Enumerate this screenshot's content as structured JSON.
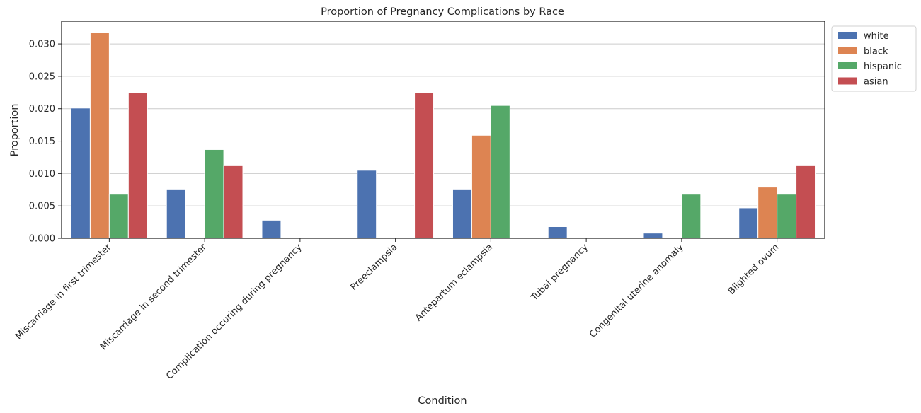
{
  "chart_data": {
    "type": "bar",
    "title": "Proportion of Pregnancy Complications by Race",
    "xlabel": "Condition",
    "ylabel": "Proportion",
    "ylim": [
      0,
      0.0335
    ],
    "yticks": [
      0.0,
      0.005,
      0.01,
      0.015,
      0.02,
      0.025,
      0.03
    ],
    "ytick_labels": [
      "0.000",
      "0.005",
      "0.010",
      "0.015",
      "0.020",
      "0.025",
      "0.030"
    ],
    "grid": "horizontal",
    "legend_position": "outside-top-right",
    "categories": [
      "Miscarriage in first trimester",
      "Miscarriage in second trimester",
      "Complication occuring during pregnancy",
      "Preeclampsia",
      "Antepartum eclampsia",
      "Tubal pregnancy",
      "Congenital uterine anomaly",
      "Blighted ovum"
    ],
    "series": [
      {
        "name": "white",
        "color": "#4c72b0",
        "values": [
          0.0201,
          0.0076,
          0.0028,
          0.0105,
          0.0076,
          0.0018,
          0.0008,
          0.0047
        ]
      },
      {
        "name": "black",
        "color": "#dd8452",
        "values": [
          0.0318,
          0.0,
          0.0,
          0.0,
          0.0159,
          0.0,
          0.0,
          0.0079
        ]
      },
      {
        "name": "hispanic",
        "color": "#55a868",
        "values": [
          0.0068,
          0.0137,
          0.0,
          0.0,
          0.0205,
          0.0,
          0.0068,
          0.0068
        ]
      },
      {
        "name": "asian",
        "color": "#c44e52",
        "values": [
          0.0225,
          0.0112,
          0.0,
          0.0225,
          0.0,
          0.0,
          0.0,
          0.0112
        ]
      }
    ]
  }
}
